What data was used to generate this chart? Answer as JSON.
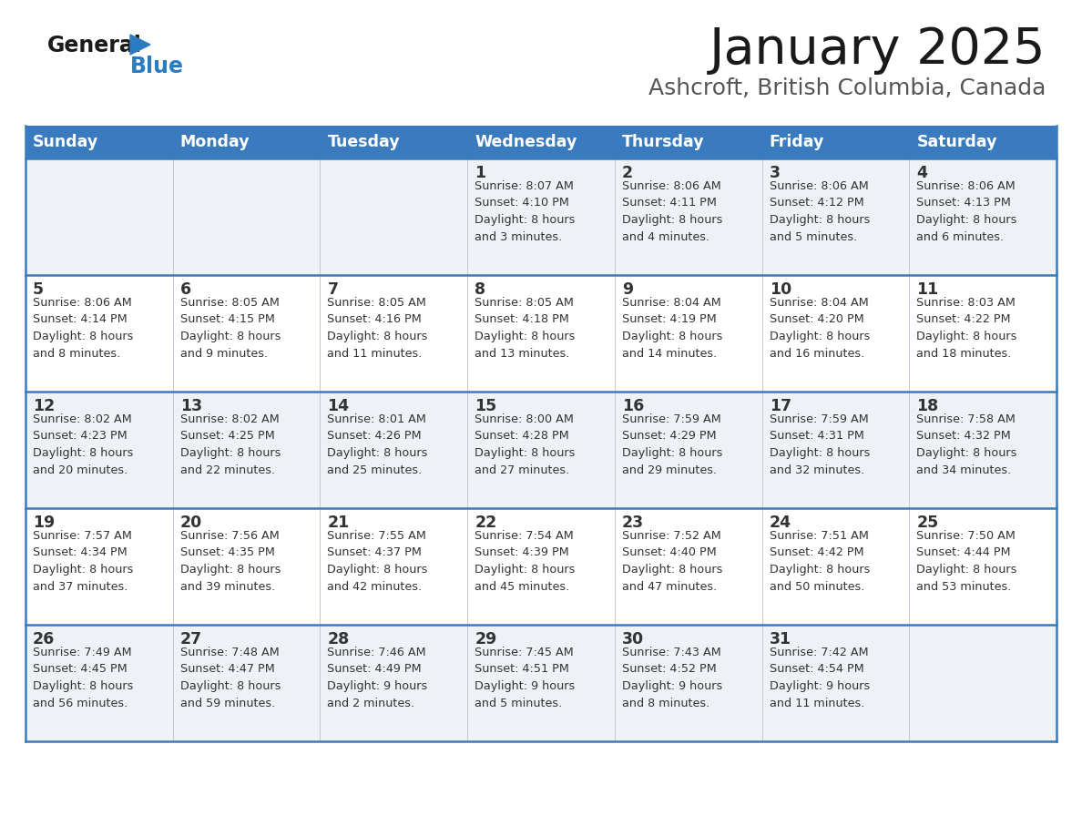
{
  "title": "January 2025",
  "subtitle": "Ashcroft, British Columbia, Canada",
  "header_bg": "#3a7bbf",
  "header_text": "#ffffff",
  "row_bg_odd": "#eef2f7",
  "row_bg_even": "#ffffff",
  "border_color": "#3a7bbf",
  "text_color": "#333333",
  "days_of_week": [
    "Sunday",
    "Monday",
    "Tuesday",
    "Wednesday",
    "Thursday",
    "Friday",
    "Saturday"
  ],
  "calendar": [
    [
      {
        "day": "",
        "info": ""
      },
      {
        "day": "",
        "info": ""
      },
      {
        "day": "",
        "info": ""
      },
      {
        "day": "1",
        "info": "Sunrise: 8:07 AM\nSunset: 4:10 PM\nDaylight: 8 hours\nand 3 minutes."
      },
      {
        "day": "2",
        "info": "Sunrise: 8:06 AM\nSunset: 4:11 PM\nDaylight: 8 hours\nand 4 minutes."
      },
      {
        "day": "3",
        "info": "Sunrise: 8:06 AM\nSunset: 4:12 PM\nDaylight: 8 hours\nand 5 minutes."
      },
      {
        "day": "4",
        "info": "Sunrise: 8:06 AM\nSunset: 4:13 PM\nDaylight: 8 hours\nand 6 minutes."
      }
    ],
    [
      {
        "day": "5",
        "info": "Sunrise: 8:06 AM\nSunset: 4:14 PM\nDaylight: 8 hours\nand 8 minutes."
      },
      {
        "day": "6",
        "info": "Sunrise: 8:05 AM\nSunset: 4:15 PM\nDaylight: 8 hours\nand 9 minutes."
      },
      {
        "day": "7",
        "info": "Sunrise: 8:05 AM\nSunset: 4:16 PM\nDaylight: 8 hours\nand 11 minutes."
      },
      {
        "day": "8",
        "info": "Sunrise: 8:05 AM\nSunset: 4:18 PM\nDaylight: 8 hours\nand 13 minutes."
      },
      {
        "day": "9",
        "info": "Sunrise: 8:04 AM\nSunset: 4:19 PM\nDaylight: 8 hours\nand 14 minutes."
      },
      {
        "day": "10",
        "info": "Sunrise: 8:04 AM\nSunset: 4:20 PM\nDaylight: 8 hours\nand 16 minutes."
      },
      {
        "day": "11",
        "info": "Sunrise: 8:03 AM\nSunset: 4:22 PM\nDaylight: 8 hours\nand 18 minutes."
      }
    ],
    [
      {
        "day": "12",
        "info": "Sunrise: 8:02 AM\nSunset: 4:23 PM\nDaylight: 8 hours\nand 20 minutes."
      },
      {
        "day": "13",
        "info": "Sunrise: 8:02 AM\nSunset: 4:25 PM\nDaylight: 8 hours\nand 22 minutes."
      },
      {
        "day": "14",
        "info": "Sunrise: 8:01 AM\nSunset: 4:26 PM\nDaylight: 8 hours\nand 25 minutes."
      },
      {
        "day": "15",
        "info": "Sunrise: 8:00 AM\nSunset: 4:28 PM\nDaylight: 8 hours\nand 27 minutes."
      },
      {
        "day": "16",
        "info": "Sunrise: 7:59 AM\nSunset: 4:29 PM\nDaylight: 8 hours\nand 29 minutes."
      },
      {
        "day": "17",
        "info": "Sunrise: 7:59 AM\nSunset: 4:31 PM\nDaylight: 8 hours\nand 32 minutes."
      },
      {
        "day": "18",
        "info": "Sunrise: 7:58 AM\nSunset: 4:32 PM\nDaylight: 8 hours\nand 34 minutes."
      }
    ],
    [
      {
        "day": "19",
        "info": "Sunrise: 7:57 AM\nSunset: 4:34 PM\nDaylight: 8 hours\nand 37 minutes."
      },
      {
        "day": "20",
        "info": "Sunrise: 7:56 AM\nSunset: 4:35 PM\nDaylight: 8 hours\nand 39 minutes."
      },
      {
        "day": "21",
        "info": "Sunrise: 7:55 AM\nSunset: 4:37 PM\nDaylight: 8 hours\nand 42 minutes."
      },
      {
        "day": "22",
        "info": "Sunrise: 7:54 AM\nSunset: 4:39 PM\nDaylight: 8 hours\nand 45 minutes."
      },
      {
        "day": "23",
        "info": "Sunrise: 7:52 AM\nSunset: 4:40 PM\nDaylight: 8 hours\nand 47 minutes."
      },
      {
        "day": "24",
        "info": "Sunrise: 7:51 AM\nSunset: 4:42 PM\nDaylight: 8 hours\nand 50 minutes."
      },
      {
        "day": "25",
        "info": "Sunrise: 7:50 AM\nSunset: 4:44 PM\nDaylight: 8 hours\nand 53 minutes."
      }
    ],
    [
      {
        "day": "26",
        "info": "Sunrise: 7:49 AM\nSunset: 4:45 PM\nDaylight: 8 hours\nand 56 minutes."
      },
      {
        "day": "27",
        "info": "Sunrise: 7:48 AM\nSunset: 4:47 PM\nDaylight: 8 hours\nand 59 minutes."
      },
      {
        "day": "28",
        "info": "Sunrise: 7:46 AM\nSunset: 4:49 PM\nDaylight: 9 hours\nand 2 minutes."
      },
      {
        "day": "29",
        "info": "Sunrise: 7:45 AM\nSunset: 4:51 PM\nDaylight: 9 hours\nand 5 minutes."
      },
      {
        "day": "30",
        "info": "Sunrise: 7:43 AM\nSunset: 4:52 PM\nDaylight: 9 hours\nand 8 minutes."
      },
      {
        "day": "31",
        "info": "Sunrise: 7:42 AM\nSunset: 4:54 PM\nDaylight: 9 hours\nand 11 minutes."
      },
      {
        "day": "",
        "info": ""
      }
    ]
  ]
}
